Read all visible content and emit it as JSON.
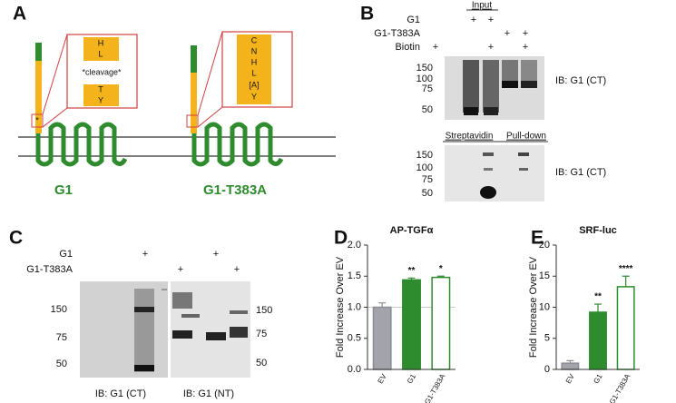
{
  "panels": {
    "A": {
      "label": "A",
      "site_marker": "*",
      "constructs": [
        {
          "name": "G1",
          "inset": [
            "H",
            "L",
            "*cleavage*",
            "T",
            "Y"
          ]
        },
        {
          "name": "G1-T383A",
          "inset": [
            "C",
            "N",
            "H",
            "L",
            "[A]",
            "Y"
          ]
        }
      ]
    },
    "B": {
      "label": "B",
      "header": "Input",
      "rows": [
        {
          "name": "G1",
          "marks": [
            "+",
            "+"
          ]
        },
        {
          "name": "G1-T383A",
          "marks": [
            "+",
            "+"
          ]
        },
        {
          "name": "Biotin",
          "marks": [
            "+",
            "+",
            "+"
          ]
        }
      ],
      "upper_markers": [
        150,
        100,
        75,
        50
      ],
      "upper_blot": "IB: G1 (CT)",
      "lower_header": [
        "Streptavidin",
        "Pull-down"
      ],
      "lower_markers": [
        150,
        100,
        75,
        50
      ],
      "lower_blot": "IB: G1 (CT)"
    },
    "C": {
      "label": "C",
      "rows": [
        {
          "name": "G1",
          "marks": [
            "+",
            "+"
          ]
        },
        {
          "name": "G1-T383A",
          "marks": [
            "+",
            "+"
          ]
        }
      ],
      "left_markers": [
        150,
        75,
        50
      ],
      "right_markers": [
        150,
        75,
        50
      ],
      "left_blot": "IB: G1 (CT)",
      "right_blot": "IB: G1 (NT)"
    }
  },
  "chart_data": [
    {
      "type": "bar",
      "panel": "D",
      "title": "AP-TGFα",
      "ylabel": "Fold Increase Over EV",
      "categories": [
        "EV",
        "G1",
        "G1-T383A"
      ],
      "values": [
        1.0,
        1.44,
        1.48
      ],
      "errors": [
        0.07,
        0.03,
        0.02
      ],
      "significance": [
        null,
        "**",
        "*"
      ],
      "fills": [
        "#a3a3ab",
        "#2e8b2e",
        "#ffffff"
      ],
      "edgecolors": [
        "#8c8c94",
        "#2e8b2e",
        "#2e8b2e"
      ],
      "ylim": [
        0,
        2.0
      ],
      "yticks": [
        {
          "value": 0,
          "label": "0.0"
        },
        0.5,
        {
          "value": 1,
          "label": "1.0"
        },
        1.5,
        {
          "value": 2,
          "label": "2.0"
        }
      ],
      "reference_line": 1.0
    },
    {
      "type": "bar",
      "panel": "E",
      "title": "SRF-luc",
      "ylabel": "Fold Increase Over EV",
      "categories": [
        "EV",
        "G1",
        "G1-T383A"
      ],
      "values": [
        1.0,
        9.2,
        13.3
      ],
      "errors": [
        0.4,
        1.3,
        1.7
      ],
      "significance": [
        null,
        "**",
        "****"
      ],
      "fills": [
        "#a3a3ab",
        "#2e8b2e",
        "#ffffff"
      ],
      "edgecolors": [
        "#8c8c94",
        "#2e8b2e",
        "#2e8b2e"
      ],
      "ylim": [
        0,
        20
      ],
      "yticks": [
        0,
        5,
        10,
        15,
        20
      ]
    }
  ]
}
